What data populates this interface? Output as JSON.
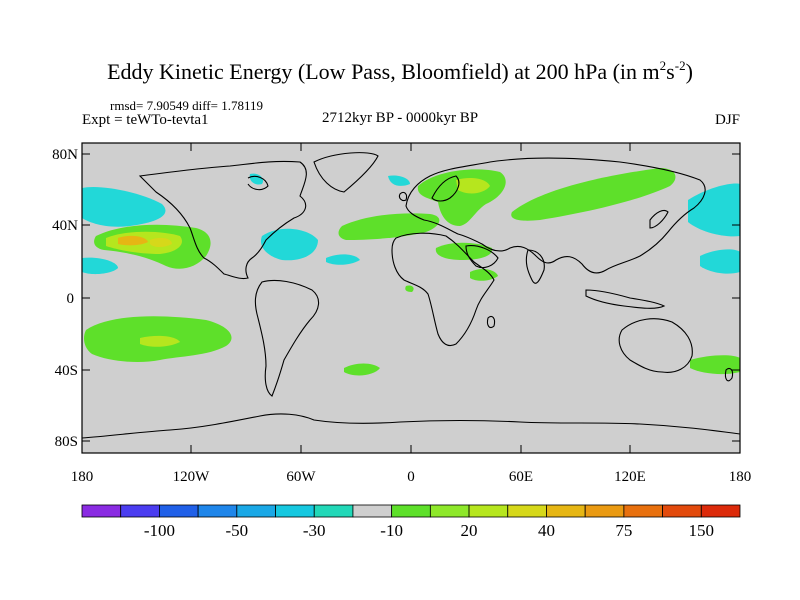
{
  "title": {
    "main": "Eddy Kinetic Energy (Low Pass, Bloomfield) at 200 hPa (in m",
    "sup1": "2",
    "mid": "s",
    "sup2": "-2",
    "close": ")"
  },
  "stats": "rmsd= 7.90549 diff= 1.78119",
  "expt": "Expt = teWTo-tevta1",
  "period": "2712kyr BP - 0000kyr BP",
  "season": "DJF",
  "axes": {
    "lat_ticks": [
      "80N",
      "40N",
      "0",
      "40S",
      "80S"
    ],
    "lon_ticks": [
      "180",
      "120W",
      "60W",
      "0",
      "60E",
      "120E",
      "180"
    ]
  },
  "colorbar": {
    "colors": [
      "#8a2be2",
      "#4b3df0",
      "#2060e8",
      "#1f86ea",
      "#1aa8e6",
      "#16c8e0",
      "#22d8b8",
      "#cfcfcf",
      "#5ee02a",
      "#8ee82a",
      "#b6e61e",
      "#d6d81a",
      "#e6b614",
      "#ea9a12",
      "#e8700e",
      "#e24a0c",
      "#dc2a0a"
    ],
    "labels": [
      {
        "text": "-100",
        "index": 2
      },
      {
        "text": "-50",
        "index": 4
      },
      {
        "text": "-30",
        "index": 6
      },
      {
        "text": "-10",
        "index": 8
      },
      {
        "text": "20",
        "index": 10
      },
      {
        "text": "40",
        "index": 12
      },
      {
        "text": "75",
        "index": 14
      },
      {
        "text": "150",
        "index": 16
      }
    ]
  },
  "palette": {
    "background": "#cfcfcf",
    "cyan": "#22d8d8",
    "green": "#5ee02a",
    "yellowgreen": "#b6e61e",
    "orange": "#e6b614"
  }
}
